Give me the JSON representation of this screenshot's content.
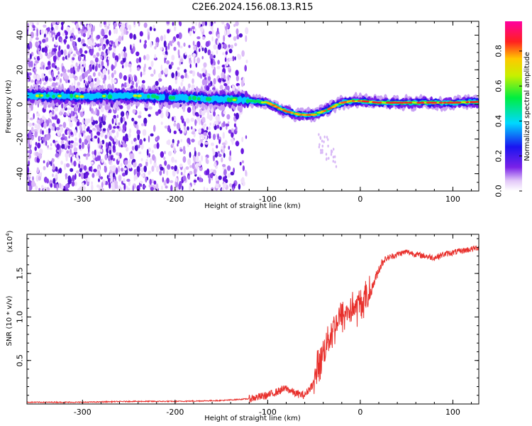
{
  "title": "C2E6.2024.156.08.13.R15",
  "chart_data": [
    {
      "type": "heatmap",
      "name": "spectrogram",
      "xlabel": "Height of straight line (km)",
      "ylabel": "Frequency (Hz)",
      "xlim": [
        -360,
        128
      ],
      "ylim": [
        -50,
        48
      ],
      "xticks": [
        -300,
        -200,
        -100,
        0,
        100
      ],
      "xtick_labels": [
        "-300",
        "-200",
        "-100",
        "0",
        "100"
      ],
      "yticks": [
        -40,
        -20,
        0,
        20,
        40
      ],
      "ytick_labels": [
        "-40",
        "-20",
        "0",
        "20",
        "40"
      ],
      "doppler_trace": {
        "x": [
          -360,
          -330,
          -300,
          -250,
          -200,
          -150,
          -125,
          -100,
          -80,
          -65,
          -50,
          -35,
          -20,
          -10,
          0,
          20,
          60,
          100,
          128
        ],
        "y": [
          5,
          5,
          4.5,
          5,
          4,
          3,
          2.5,
          1,
          -4,
          -6,
          -6,
          -3,
          1,
          2,
          2,
          1,
          1,
          1,
          1.5
        ]
      },
      "colorbar": {
        "label": "Normalized spectral amplitude",
        "range": [
          0,
          0.97
        ],
        "ticks": [
          0.0,
          0.2,
          0.4,
          0.6,
          0.8
        ],
        "tick_labels": [
          "0.0",
          "0.2",
          "0.4",
          "0.6",
          "0.8"
        ]
      }
    },
    {
      "type": "line",
      "name": "snr",
      "xlabel": "Height of straight line (km)",
      "ylabel": "SNR (10 * v/v)",
      "yscale_label": "(x10",
      "yscale_exp": "4",
      "yscale_close": ")",
      "xlim": [
        -360,
        128
      ],
      "ylim": [
        0,
        1.95
      ],
      "xticks": [
        -300,
        -200,
        -100,
        0,
        100
      ],
      "xtick_labels": [
        "-300",
        "-200",
        "-100",
        "0",
        "100"
      ],
      "yticks": [
        0.5,
        1.0,
        1.5
      ],
      "ytick_labels": [
        "0.5",
        "1.0",
        "1.5"
      ],
      "series": [
        {
          "name": "SNR",
          "color": "#e8302c",
          "x": [
            -360,
            -300,
            -250,
            -200,
            -150,
            -120,
            -100,
            -90,
            -80,
            -70,
            -60,
            -50,
            -45,
            -40,
            -35,
            -30,
            -25,
            -20,
            -15,
            -10,
            -5,
            0,
            5,
            10,
            15,
            20,
            25,
            30,
            35,
            40,
            50,
            60,
            70,
            80,
            90,
            100,
            110,
            120,
            128
          ],
          "y": [
            0.02,
            0.02,
            0.03,
            0.03,
            0.04,
            0.06,
            0.1,
            0.14,
            0.18,
            0.12,
            0.1,
            0.25,
            0.45,
            0.6,
            0.75,
            0.85,
            0.95,
            1.0,
            1.05,
            1.1,
            1.1,
            1.15,
            1.2,
            1.25,
            1.4,
            1.55,
            1.65,
            1.68,
            1.7,
            1.72,
            1.75,
            1.72,
            1.7,
            1.68,
            1.72,
            1.74,
            1.76,
            1.78,
            1.8
          ]
        }
      ]
    }
  ]
}
